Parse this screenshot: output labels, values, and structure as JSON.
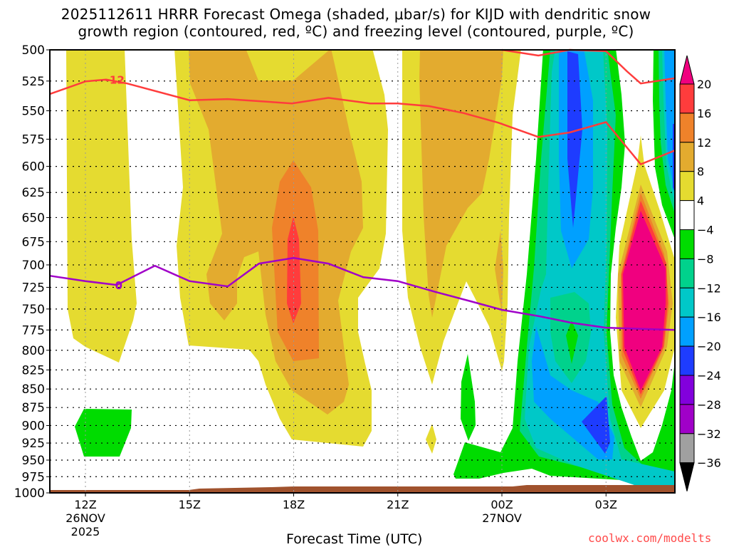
{
  "chart_data": {
    "type": "heatmap",
    "title_line1": "2025112611 HRRR Forecast Omega (shaded, μbar/s) for KIJD with dendritic snow",
    "title_line2": "growth region (contoured, red, ºC) and freezing level (contoured, purple, ºC)",
    "xlabel": "Forecast Time (UTC)",
    "ylabel": "",
    "credit": "coolwx.com/modelts",
    "x_range_hours": [
      11,
      29
    ],
    "y_range_hpa": [
      1000,
      500
    ],
    "y_scale": "log-pressure",
    "grid": true,
    "y_ticks": [
      500,
      525,
      550,
      575,
      600,
      625,
      650,
      675,
      700,
      725,
      750,
      775,
      800,
      825,
      850,
      875,
      900,
      925,
      950,
      975,
      1000
    ],
    "x_ticks": [
      {
        "hour": 12,
        "label": "12Z",
        "date": "26NOV",
        "year": "2025"
      },
      {
        "hour": 15,
        "label": "15Z"
      },
      {
        "hour": 18,
        "label": "18Z"
      },
      {
        "hour": 21,
        "label": "21Z"
      },
      {
        "hour": 24,
        "label": "00Z",
        "date": "27NOV"
      },
      {
        "hour": 27,
        "label": "03Z"
      }
    ],
    "colorbar": {
      "labels": [
        "20",
        "16",
        "12",
        "8",
        "4",
        "−4",
        "−8",
        "−12",
        "−16",
        "−20",
        "−24",
        "−28",
        "−32",
        "−36"
      ],
      "over_color": "#f0007f",
      "under_color": "#000000",
      "bins": [
        {
          "range": [
            16,
            20
          ],
          "color": "#ff3c3c"
        },
        {
          "range": [
            12,
            16
          ],
          "color": "#ef822a"
        },
        {
          "range": [
            8,
            12
          ],
          "color": "#e3ab2f"
        },
        {
          "range": [
            4,
            8
          ],
          "color": "#e5db30"
        },
        {
          "range": [
            -4,
            4
          ],
          "color": "#ffffff"
        },
        {
          "range": [
            -8,
            -4
          ],
          "color": "#00dc00"
        },
        {
          "range": [
            -12,
            -8
          ],
          "color": "#00d28c"
        },
        {
          "range": [
            -16,
            -12
          ],
          "color": "#00c8c8"
        },
        {
          "range": [
            -20,
            -16
          ],
          "color": "#00a0ff"
        },
        {
          "range": [
            -24,
            -20
          ],
          "color": "#1e3cff"
        },
        {
          "range": [
            -28,
            -24
          ],
          "color": "#8200dc"
        },
        {
          "range": [
            -32,
            -28
          ],
          "color": "#a000c8"
        },
        {
          "range": [
            -36,
            -32
          ],
          "color": "#a0a0a0"
        }
      ]
    },
    "contours": [
      {
        "name": "dendritic -12C (lower branch)",
        "label": "-12",
        "color": "#ff3c3c",
        "points": [
          [
            10.97,
            535.8
          ],
          [
            12,
            525.3
          ],
          [
            12.6,
            523.8
          ],
          [
            13.2,
            527
          ],
          [
            15,
            541
          ],
          [
            16.1,
            540
          ],
          [
            17.95,
            543.7
          ],
          [
            19,
            539
          ],
          [
            20.2,
            543.7
          ],
          [
            21,
            543.7
          ],
          [
            21.9,
            546
          ],
          [
            22.9,
            552
          ],
          [
            23.9,
            560.4
          ],
          [
            25.05,
            573
          ],
          [
            25.95,
            569
          ],
          [
            27,
            559.8
          ],
          [
            28,
            598
          ],
          [
            29,
            585
          ]
        ]
      },
      {
        "name": "dendritic -12C (upper branch)",
        "label": "",
        "color": "#ff3c3c",
        "points": [
          [
            24,
            500
          ],
          [
            25.05,
            504.5
          ],
          [
            25.95,
            500
          ],
          [
            27,
            501
          ],
          [
            27.6,
            517
          ],
          [
            28,
            527
          ],
          [
            29,
            522.6
          ]
        ]
      },
      {
        "name": "freezing level 0C",
        "label": "0",
        "color": "#a000c8",
        "points": [
          [
            10.97,
            712
          ],
          [
            12,
            718
          ],
          [
            12.9,
            722.3
          ],
          [
            14,
            700.9
          ],
          [
            15,
            718
          ],
          [
            16.1,
            723.9
          ],
          [
            17,
            698.6
          ],
          [
            18,
            692.4
          ],
          [
            19,
            698.6
          ],
          [
            20,
            713.5
          ],
          [
            21,
            718
          ],
          [
            22.1,
            730.4
          ],
          [
            23.1,
            741
          ],
          [
            24,
            751
          ],
          [
            25.1,
            758.7
          ],
          [
            26,
            766.3
          ],
          [
            27,
            772.3
          ],
          [
            29,
            775
          ]
        ]
      }
    ],
    "shaded_regions_summary": [
      {
        "time": "12Z-13Z",
        "levels_hpa": [
          500,
          805
        ],
        "omega_bin": [
          4,
          8
        ]
      },
      {
        "time": "12Z-13Z",
        "levels_hpa": [
          890,
          940
        ],
        "omega_bin": [
          -8,
          -4
        ]
      },
      {
        "time": "15Z-20Z",
        "levels_hpa": [
          500,
          940
        ],
        "omega_bin": [
          4,
          8
        ]
      },
      {
        "time": "15Z-20Z",
        "levels_hpa": [
          500,
          880
        ],
        "omega_bin": [
          8,
          12
        ]
      },
      {
        "time": "17Z-19Z",
        "levels_hpa": [
          615,
          810
        ],
        "omega_bin": [
          12,
          16
        ]
      },
      {
        "time": "18Z",
        "levels_hpa": [
          655,
          775
        ],
        "omega_bin": [
          16,
          20
        ]
      },
      {
        "time": "21Z-00Z",
        "levels_hpa": [
          500,
          850
        ],
        "omega_bin": [
          4,
          12
        ]
      },
      {
        "time": "01Z-03Z",
        "levels_hpa": [
          500,
          990
        ],
        "omega_bin": [
          -24,
          -4
        ]
      },
      {
        "time": "04Z",
        "levels_hpa": [
          590,
          905
        ],
        "omega_bin": [
          4,
          20
        ],
        "max": ">20"
      }
    ]
  }
}
